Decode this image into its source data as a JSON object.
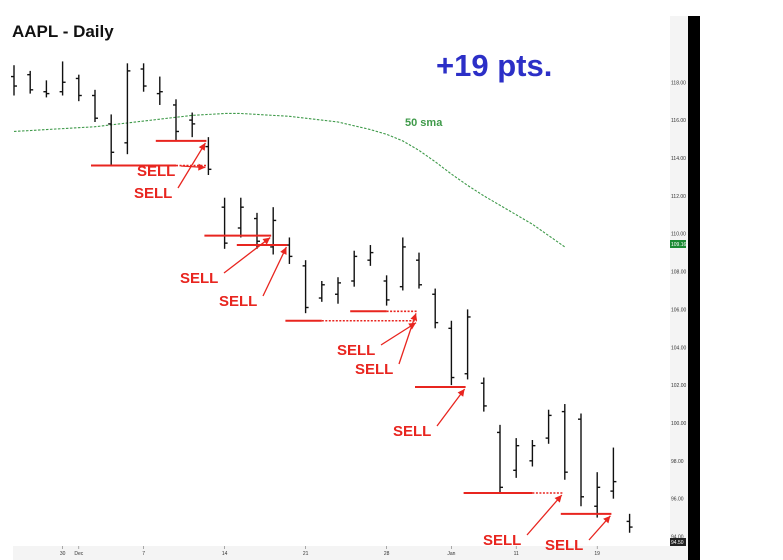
{
  "chart_data": {
    "type": "ohlc",
    "title": "AAPL - Daily",
    "annotation_headline": "+19 pts.",
    "headline_color": "#2c2fc7",
    "bar_color": "#111111",
    "sma_color": "#3f9a4a",
    "sell_color": "#e8251f",
    "sma_label": "50 sma",
    "ylim": [
      93.5,
      121.5
    ],
    "y_ticks": [
      118,
      116,
      114,
      112,
      110,
      108,
      106,
      104,
      102,
      100,
      98,
      96,
      94
    ],
    "y_tick_labels": [
      "118.00",
      "116.00",
      "114.00",
      "112.00",
      "110.00",
      "108.00",
      "106.00",
      "104.00",
      "102.00",
      "100.00",
      "98.00",
      "96.00",
      "94.00"
    ],
    "x_tick_labels": [
      "30",
      "Dec",
      "7",
      "14",
      "21",
      "28",
      "Jan",
      "11",
      "19"
    ],
    "last_price_label": "109.16",
    "last_tick_label": "94.50",
    "bars": [
      {
        "high": 118.9,
        "low": 117.3,
        "open": 118.3,
        "close": 117.8
      },
      {
        "high": 118.6,
        "low": 117.4,
        "open": 118.4,
        "close": 117.6
      },
      {
        "high": 118.1,
        "low": 117.2,
        "open": 117.5,
        "close": 117.4
      },
      {
        "high": 119.1,
        "low": 117.3,
        "open": 117.5,
        "close": 118.0
      },
      {
        "high": 118.4,
        "low": 117.0,
        "open": 118.2,
        "close": 117.3
      },
      {
        "high": 117.6,
        "low": 115.9,
        "open": 117.3,
        "close": 116.1
      },
      {
        "high": 116.3,
        "low": 113.6,
        "open": 115.8,
        "close": 114.3
      },
      {
        "high": 119.0,
        "low": 114.2,
        "open": 114.8,
        "close": 118.6
      },
      {
        "high": 119.0,
        "low": 117.5,
        "open": 118.7,
        "close": 117.8
      },
      {
        "high": 118.3,
        "low": 116.8,
        "open": 117.4,
        "close": 117.5
      },
      {
        "high": 117.1,
        "low": 114.9,
        "open": 116.8,
        "close": 115.4
      },
      {
        "high": 116.4,
        "low": 115.1,
        "open": 116.0,
        "close": 115.8
      },
      {
        "high": 115.1,
        "low": 113.1,
        "open": 114.6,
        "close": 113.4
      },
      {
        "high": 111.9,
        "low": 109.2,
        "open": 111.4,
        "close": 109.5
      },
      {
        "high": 111.9,
        "low": 109.8,
        "open": 110.3,
        "close": 111.4
      },
      {
        "high": 111.1,
        "low": 109.2,
        "open": 110.8,
        "close": 109.6
      },
      {
        "high": 111.4,
        "low": 108.9,
        "open": 109.3,
        "close": 110.7
      },
      {
        "high": 109.8,
        "low": 108.4,
        "open": 109.4,
        "close": 108.8
      },
      {
        "high": 108.6,
        "low": 105.8,
        "open": 108.3,
        "close": 106.1
      },
      {
        "high": 107.5,
        "low": 106.4,
        "open": 106.6,
        "close": 107.3
      },
      {
        "high": 107.7,
        "low": 106.3,
        "open": 106.8,
        "close": 107.4
      },
      {
        "high": 109.1,
        "low": 107.2,
        "open": 107.5,
        "close": 108.8
      },
      {
        "high": 109.4,
        "low": 108.3,
        "open": 108.6,
        "close": 109.0
      },
      {
        "high": 107.8,
        "low": 106.2,
        "open": 107.5,
        "close": 106.5
      },
      {
        "high": 109.8,
        "low": 107.0,
        "open": 107.2,
        "close": 109.3
      },
      {
        "high": 109.0,
        "low": 107.1,
        "open": 108.6,
        "close": 107.3
      },
      {
        "high": 107.1,
        "low": 105.0,
        "open": 106.8,
        "close": 105.3
      },
      {
        "high": 105.4,
        "low": 102.0,
        "open": 105.0,
        "close": 102.4
      },
      {
        "high": 106.0,
        "low": 102.3,
        "open": 102.6,
        "close": 105.6
      },
      {
        "high": 102.4,
        "low": 100.6,
        "open": 102.1,
        "close": 100.9
      },
      {
        "high": 99.9,
        "low": 96.3,
        "open": 99.5,
        "close": 96.6
      },
      {
        "high": 99.2,
        "low": 97.1,
        "open": 97.5,
        "close": 98.8
      },
      {
        "high": 99.1,
        "low": 97.7,
        "open": 98.0,
        "close": 98.8
      },
      {
        "high": 100.7,
        "low": 98.9,
        "open": 99.2,
        "close": 100.4
      },
      {
        "high": 101.0,
        "low": 97.0,
        "open": 100.6,
        "close": 97.4
      },
      {
        "high": 100.5,
        "low": 95.6,
        "open": 100.2,
        "close": 96.1
      },
      {
        "high": 97.4,
        "low": 95.0,
        "open": 95.6,
        "close": 96.6
      },
      {
        "high": 98.7,
        "low": 96.0,
        "open": 96.4,
        "close": 96.9
      },
      {
        "high": 95.2,
        "low": 94.2,
        "open": 94.8,
        "close": 94.5
      }
    ],
    "sma": [
      115.4,
      115.45,
      115.5,
      115.55,
      115.6,
      115.65,
      115.75,
      115.85,
      115.95,
      116.05,
      116.15,
      116.25,
      116.3,
      116.35,
      116.35,
      116.3,
      116.25,
      116.2,
      116.1,
      116.0,
      115.9,
      115.7,
      115.5,
      115.25,
      114.9,
      114.4,
      113.8,
      113.15,
      112.55,
      112.0,
      111.5,
      111.0,
      110.5,
      109.9,
      109.3
    ],
    "sell_labels": [
      "SELL",
      "SELL",
      "SELL",
      "SELL",
      "SELL",
      "SELL",
      "SELL",
      "SELL",
      "SELL"
    ]
  }
}
